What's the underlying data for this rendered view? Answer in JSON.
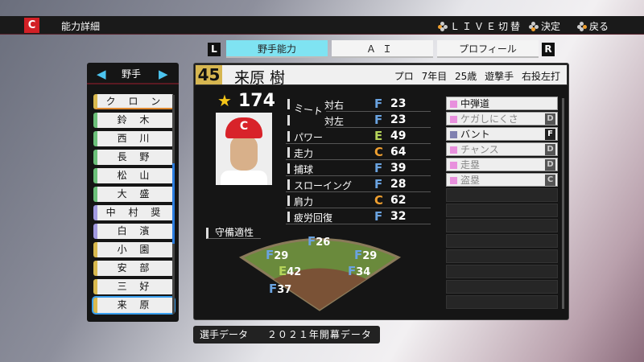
{
  "header": {
    "logo": "C",
    "title": "能力詳細",
    "hints": [
      "ＬＩＶＥ切替",
      "決定",
      "戻る"
    ]
  },
  "tabs": {
    "left_key": "L",
    "right_key": "R",
    "items": [
      {
        "label": "野手能力",
        "active": true
      },
      {
        "label": "ＡＩ"
      },
      {
        "label": "プロフィール"
      }
    ]
  },
  "player": {
    "number": "45",
    "name": "来原 樹",
    "career": "プロ 7年目",
    "age": "25歳",
    "position": "遊撃手",
    "throws_bats": "右投左打",
    "overall": "174"
  },
  "list": {
    "category": "野手",
    "items": [
      "ク ロ ン",
      "鈴 木",
      "西 川",
      "長 野",
      "松 山",
      "大 盛",
      "中 村 奨",
      "白 濱",
      "小 園",
      "安 部",
      "三 好",
      "来 原"
    ],
    "colors": [
      "#d9b94f",
      "#6cc07a",
      "#6cc07a",
      "#6cc07a",
      "#6cc07a",
      "#6cc07a",
      "#a29ae0",
      "#a29ae0",
      "#d9b94f",
      "#d9b94f",
      "#d9b94f",
      "#d9b94f"
    ],
    "selected": 11
  },
  "stats": {
    "meet_label": "ミート",
    "rows": [
      {
        "label": "対右",
        "rank": "F",
        "value": "23"
      },
      {
        "label": "対左",
        "rank": "F",
        "value": "23"
      },
      {
        "label": "パワー",
        "rank": "E",
        "value": "49"
      },
      {
        "label": "走力",
        "rank": "C",
        "value": "64"
      },
      {
        "label": "捕球",
        "rank": "F",
        "value": "39"
      },
      {
        "label": "スローイング",
        "rank": "F",
        "value": "28"
      },
      {
        "label": "肩力",
        "rank": "C",
        "value": "62"
      },
      {
        "label": "疲労回復",
        "rank": "F",
        "value": "32"
      }
    ]
  },
  "rank_colors": {
    "F": "#6aa3e0",
    "E": "#b5d45a",
    "C": "#f0a030"
  },
  "abilities": [
    {
      "label": "中弾道",
      "grade": "",
      "active": true
    },
    {
      "label": "ケガしにくさ",
      "grade": "D"
    },
    {
      "label": "バント",
      "grade": "F",
      "active": true,
      "color": "#8080b0"
    },
    {
      "label": "チャンス",
      "grade": "D"
    },
    {
      "label": "走塁",
      "grade": "D"
    },
    {
      "label": "盗塁",
      "grade": "C"
    }
  ],
  "defense": {
    "label": "守備適性",
    "positions": [
      {
        "rank": "F",
        "value": "26"
      },
      {
        "rank": "F",
        "value": "29"
      },
      {
        "rank": "F",
        "value": "29"
      },
      {
        "rank": "E",
        "value": "42"
      },
      {
        "rank": "F",
        "value": "34"
      },
      {
        "rank": "F",
        "value": "37"
      }
    ]
  },
  "footer": {
    "label": "選手データ",
    "value": "２０２１年開幕データ"
  }
}
